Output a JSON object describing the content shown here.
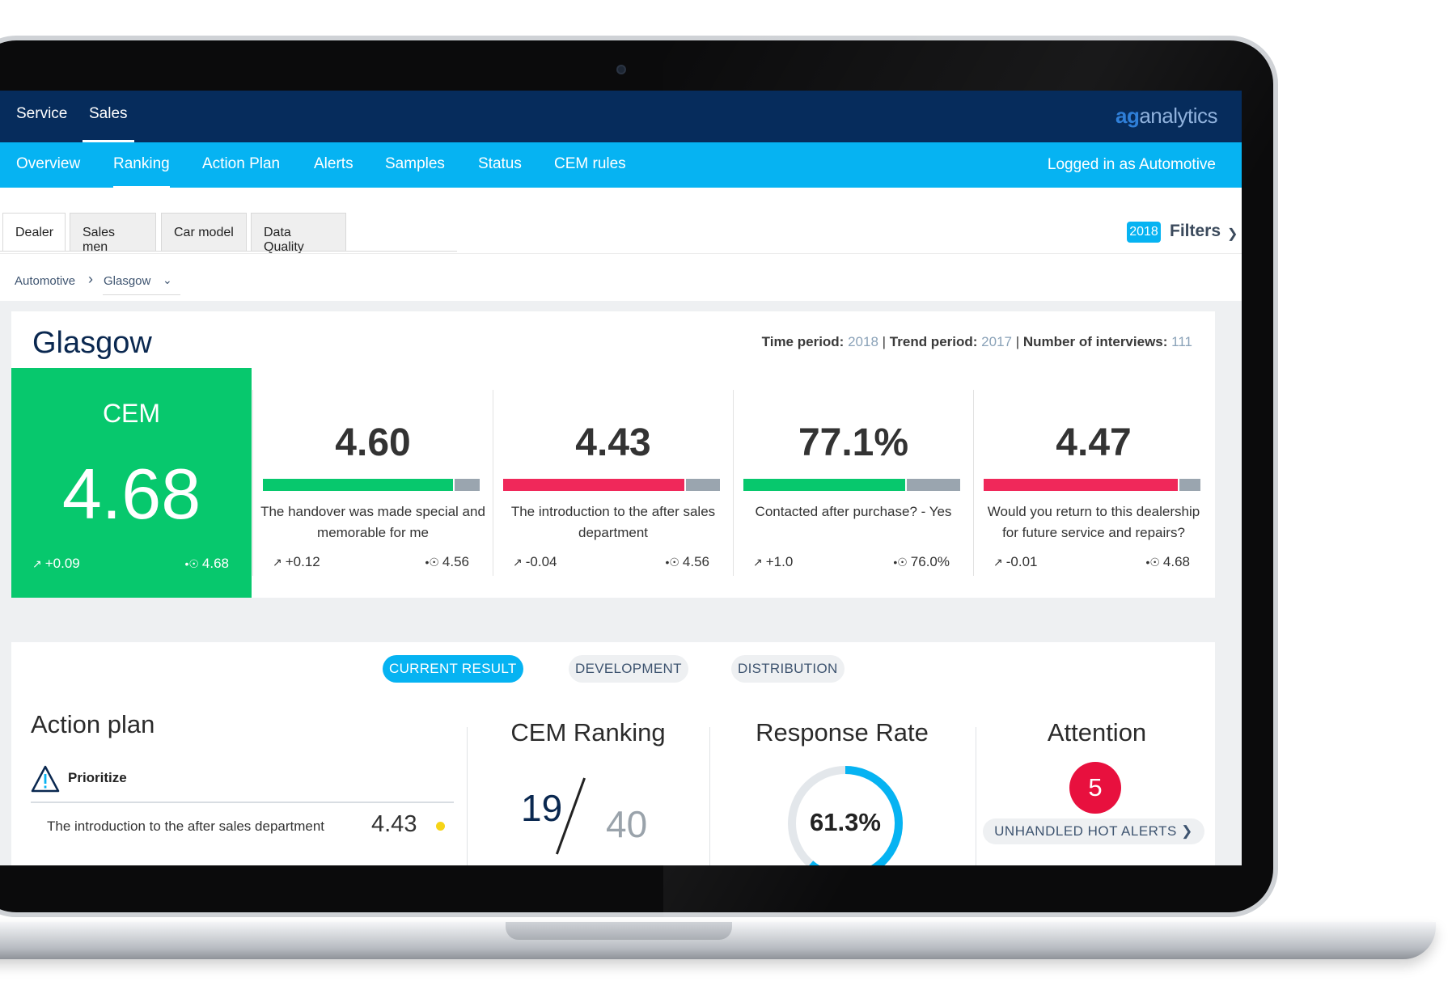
{
  "topnav": {
    "items": [
      "Service",
      "Sales"
    ],
    "active": "Sales"
  },
  "brand": {
    "prefix": "ag",
    "suffix": "analytics"
  },
  "subnav": {
    "items": [
      "Overview",
      "Ranking",
      "Action Plan",
      "Alerts",
      "Samples",
      "Status",
      "CEM rules"
    ],
    "active": "Ranking"
  },
  "user": {
    "logged_in_label": "Logged in as Automotive"
  },
  "tabs": [
    "Dealer",
    "Sales men",
    "Car model",
    "Data Quality"
  ],
  "filters": {
    "year": "2018",
    "label": "Filters"
  },
  "breadcrumb": {
    "root": "Automotive",
    "current": "Glasgow"
  },
  "summary": {
    "title": "Glasgow",
    "meta": {
      "time_label": "Time period:",
      "time_value": "2018",
      "trend_label": "Trend period:",
      "trend_value": "2017",
      "interviews_label": "Number of interviews:",
      "interviews_value": "111",
      "separator": "|"
    },
    "cem": {
      "label": "CEM",
      "value": "4.68",
      "trend": "+0.09",
      "benchmark": "4.68"
    },
    "kpis": [
      {
        "value": "4.60",
        "fill_pct": 88,
        "color": "#07c86d",
        "description": "The handover was made special and memorable for me",
        "trend": "+0.12",
        "benchmark": "4.56"
      },
      {
        "value": "4.43",
        "fill_pct": 84,
        "color": "#f0285a",
        "description": "The introduction to the after sales department",
        "trend": "-0.04",
        "benchmark": "4.56"
      },
      {
        "value": "77.1%",
        "fill_pct": 75,
        "color": "#07c86d",
        "description": "Contacted after purchase? - Yes",
        "trend": "+1.0",
        "benchmark": "76.0%"
      },
      {
        "value": "4.47",
        "fill_pct": 90,
        "color": "#f0285a",
        "description": "Would you return to this dealership for future service and repairs?",
        "trend": "-0.01",
        "benchmark": "4.68"
      }
    ]
  },
  "views": {
    "items": [
      "CURRENT RESULT",
      "DEVELOPMENT",
      "DISTRIBUTION"
    ],
    "active": "CURRENT RESULT"
  },
  "action_plan": {
    "title": "Action plan",
    "section": "Prioritize",
    "items": [
      {
        "label": "The introduction to the after sales department",
        "value": "4.43"
      }
    ]
  },
  "cem_ranking": {
    "title": "CEM Ranking",
    "rank": "19",
    "total": "40"
  },
  "response_rate": {
    "title": "Response Rate",
    "value": "61.3%",
    "fraction": 0.613
  },
  "attention": {
    "title": "Attention",
    "count": "5",
    "button_label": "UNHANDLED HOT ALERTS"
  },
  "icons": {
    "trend": "trend-up-icon",
    "benchmark": "benchmark-target-icon",
    "breadcrumb": "chevron-right-icon",
    "dropdown": "chevron-down-icon",
    "warning": "warning-triangle-icon"
  }
}
